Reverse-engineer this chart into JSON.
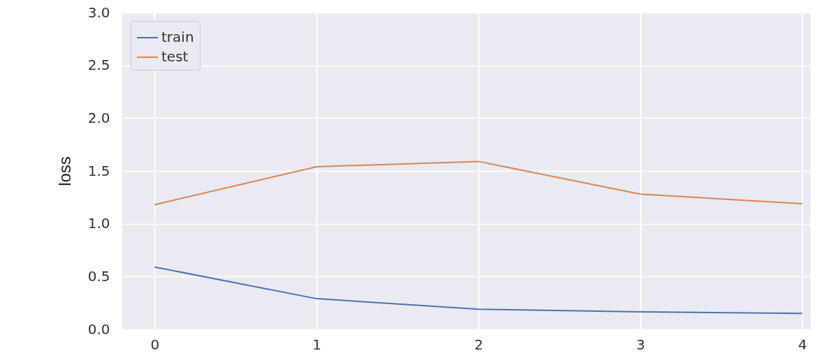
{
  "chart_data": {
    "type": "line",
    "ylabel": "loss",
    "x": [
      0,
      1,
      2,
      3,
      4
    ],
    "series": [
      {
        "name": "train",
        "color": "#4c72b0",
        "values": [
          0.59,
          0.29,
          0.19,
          0.165,
          0.15
        ]
      },
      {
        "name": "test",
        "color": "#dd8452",
        "values": [
          1.18,
          1.54,
          1.59,
          1.28,
          1.19
        ]
      }
    ],
    "xlim": [
      -0.2,
      4.05
    ],
    "xticks": [
      0,
      1,
      2,
      3,
      4
    ],
    "ylim": [
      0,
      3
    ],
    "yticks": [
      {
        "value": 0,
        "label": "0.0"
      },
      {
        "value": 0.5,
        "label": "0.5"
      },
      {
        "value": 1,
        "label": "1.0"
      },
      {
        "value": 1.5,
        "label": "1.5"
      },
      {
        "value": 2,
        "label": "2.0"
      },
      {
        "value": 2.5,
        "label": "2.5"
      },
      {
        "value": 3,
        "label": "3.0"
      }
    ],
    "grid": true,
    "legend": "top left",
    "line_style": "solid",
    "marker": "none"
  }
}
